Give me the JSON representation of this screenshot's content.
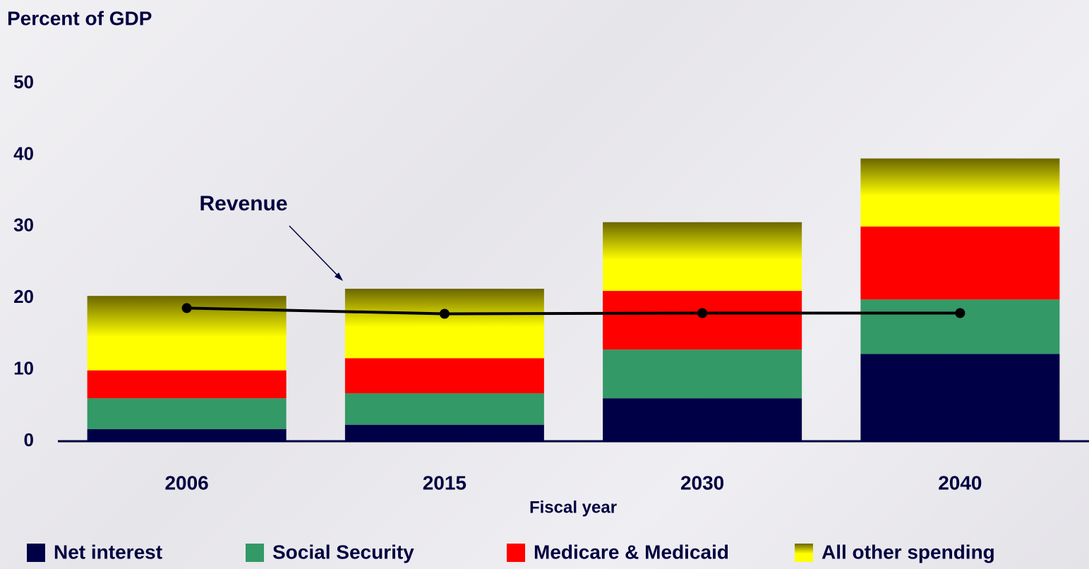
{
  "chart_data": {
    "type": "bar",
    "stacked": true,
    "title": "Percent of GDP",
    "x_label": "Fiscal year",
    "categories": [
      "2006",
      "2015",
      "2030",
      "2040"
    ],
    "series": [
      {
        "name": "Net interest",
        "color": "#000046",
        "values": [
          1.7,
          2.3,
          6.0,
          12.2
        ]
      },
      {
        "name": "Social Security",
        "color": "#339966",
        "values": [
          4.3,
          4.4,
          6.8,
          7.6
        ]
      },
      {
        "name": "Medicare & Medicaid",
        "color": "#ff0000",
        "values": [
          3.9,
          4.9,
          8.2,
          10.2
        ]
      },
      {
        "name": "All other spending",
        "color": "#ffff00",
        "values": [
          10.4,
          9.7,
          9.6,
          9.5
        ]
      }
    ],
    "line": {
      "name": "Revenue",
      "color": "#000000",
      "values": [
        18.6,
        17.8,
        17.9,
        17.9
      ]
    },
    "ylim": [
      0,
      50
    ],
    "yticks": [
      0,
      10,
      20,
      30,
      40,
      50
    ],
    "grid": false
  }
}
